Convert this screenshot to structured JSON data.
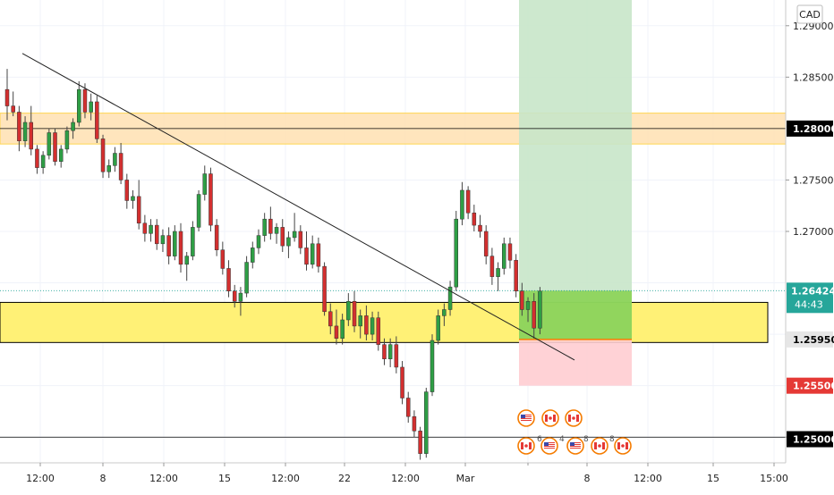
{
  "currency_label": "CAD",
  "chart_data": {
    "type": "candlestick",
    "title": "",
    "xlabel": "",
    "ylabel": "",
    "ylim": [
      1.2475,
      1.2925
    ],
    "y_ticks": [
      "1.29000",
      "1.28500",
      "1.27500",
      "1.27000",
      "1.25000"
    ],
    "x_ticks": [
      "12:00",
      "8",
      "12:00",
      "15",
      "12:00",
      "22",
      "12:00",
      "Mar",
      "12:00",
      "8",
      "12:00",
      "15",
      "15:00"
    ],
    "price_labels": {
      "resistance": "1.28000",
      "current": "1.26424",
      "countdown": "44:43",
      "entry": "1.25950",
      "stop": "1.25500",
      "bottom": "1.25000"
    },
    "colors": {
      "up": "#26a69a",
      "up_body": "#2e9e45",
      "down": "#d32f2f",
      "wick": "#444444",
      "support_zone": "#fff176",
      "resistance_zone": "#ffe0b2",
      "profit_zone": "#c8e6c9",
      "loss_zone": "#ffcdd2"
    },
    "annotations": {
      "resistance_zone": [
        1.2785,
        1.2815
      ],
      "support_zone": [
        1.2592,
        1.2631
      ],
      "resistance_line": 1.28,
      "support_line": 1.25,
      "position": {
        "entry": 1.2595,
        "stop": 1.255,
        "target": 1.2925,
        "current": 1.26424
      },
      "trendline": {
        "from": 1.2873,
        "to": 1.2575
      }
    },
    "event_labels": [
      "6",
      "4",
      "8",
      "8"
    ],
    "candles": [
      [
        1.2838,
        1.2858,
        1.2808,
        1.2822
      ],
      [
        1.2822,
        1.2836,
        1.2812,
        1.2816
      ],
      [
        1.2816,
        1.2822,
        1.2778,
        1.2788
      ],
      [
        1.2788,
        1.2812,
        1.2782,
        1.2806
      ],
      [
        1.2806,
        1.2822,
        1.2774,
        1.278
      ],
      [
        1.278,
        1.2784,
        1.2756,
        1.2762
      ],
      [
        1.2762,
        1.2778,
        1.2756,
        1.2774
      ],
      [
        1.2774,
        1.28,
        1.277,
        1.2796
      ],
      [
        1.2796,
        1.28,
        1.2764,
        1.2768
      ],
      [
        1.2768,
        1.2784,
        1.2762,
        1.278
      ],
      [
        1.278,
        1.2802,
        1.2776,
        1.2798
      ],
      [
        1.2798,
        1.281,
        1.279,
        1.2806
      ],
      [
        1.2806,
        1.2846,
        1.2802,
        1.2838
      ],
      [
        1.2838,
        1.2844,
        1.281,
        1.2816
      ],
      [
        1.2816,
        1.2834,
        1.2808,
        1.2826
      ],
      [
        1.2826,
        1.2832,
        1.2786,
        1.279
      ],
      [
        1.279,
        1.2794,
        1.2752,
        1.2758
      ],
      [
        1.2758,
        1.277,
        1.2752,
        1.2764
      ],
      [
        1.2764,
        1.2782,
        1.2758,
        1.2776
      ],
      [
        1.2776,
        1.2786,
        1.2746,
        1.275
      ],
      [
        1.275,
        1.2756,
        1.2722,
        1.273
      ],
      [
        1.273,
        1.274,
        1.2722,
        1.2734
      ],
      [
        1.2734,
        1.275,
        1.2702,
        1.2708
      ],
      [
        1.2708,
        1.2716,
        1.269,
        1.2698
      ],
      [
        1.2698,
        1.2712,
        1.269,
        1.2706
      ],
      [
        1.2706,
        1.2712,
        1.2682,
        1.2688
      ],
      [
        1.2688,
        1.2702,
        1.268,
        1.2696
      ],
      [
        1.2696,
        1.2704,
        1.2668,
        1.2676
      ],
      [
        1.2676,
        1.2706,
        1.2672,
        1.27
      ],
      [
        1.27,
        1.2708,
        1.266,
        1.2668
      ],
      [
        1.2668,
        1.268,
        1.2652,
        1.2676
      ],
      [
        1.2676,
        1.271,
        1.2672,
        1.2704
      ],
      [
        1.2704,
        1.274,
        1.27,
        1.2736
      ],
      [
        1.2736,
        1.2764,
        1.273,
        1.2756
      ],
      [
        1.2756,
        1.2762,
        1.27,
        1.2706
      ],
      [
        1.2706,
        1.2712,
        1.2676,
        1.2682
      ],
      [
        1.2682,
        1.269,
        1.2658,
        1.2664
      ],
      [
        1.2664,
        1.2672,
        1.2636,
        1.2642
      ],
      [
        1.2642,
        1.2648,
        1.2626,
        1.2632
      ],
      [
        1.2632,
        1.2646,
        1.2618,
        1.264
      ],
      [
        1.264,
        1.2676,
        1.2636,
        1.267
      ],
      [
        1.267,
        1.269,
        1.2664,
        1.2684
      ],
      [
        1.2684,
        1.2702,
        1.2678,
        1.2696
      ],
      [
        1.2696,
        1.2718,
        1.269,
        1.2712
      ],
      [
        1.2712,
        1.2724,
        1.2692,
        1.2698
      ],
      [
        1.2698,
        1.2708,
        1.2688,
        1.2704
      ],
      [
        1.2704,
        1.2712,
        1.268,
        1.2686
      ],
      [
        1.2686,
        1.27,
        1.2674,
        1.2694
      ],
      [
        1.2694,
        1.2718,
        1.269,
        1.27
      ],
      [
        1.27,
        1.2706,
        1.2678,
        1.2684
      ],
      [
        1.2684,
        1.27,
        1.2662,
        1.2668
      ],
      [
        1.2668,
        1.2696,
        1.2664,
        1.2688
      ],
      [
        1.2688,
        1.2694,
        1.266,
        1.2666
      ],
      [
        1.2666,
        1.267,
        1.2618,
        1.2622
      ],
      [
        1.2622,
        1.263,
        1.26,
        1.2608
      ],
      [
        1.2608,
        1.2624,
        1.259,
        1.2596
      ],
      [
        1.2596,
        1.262,
        1.259,
        1.2614
      ],
      [
        1.2614,
        1.264,
        1.2608,
        1.2632
      ],
      [
        1.2632,
        1.2642,
        1.2602,
        1.2608
      ],
      [
        1.2608,
        1.2624,
        1.2596,
        1.2618
      ],
      [
        1.2618,
        1.2628,
        1.2594,
        1.26
      ],
      [
        1.26,
        1.2622,
        1.2594,
        1.2616
      ],
      [
        1.2616,
        1.2622,
        1.2584,
        1.259
      ],
      [
        1.259,
        1.2596,
        1.257,
        1.2576
      ],
      [
        1.2576,
        1.2596,
        1.2568,
        1.259
      ],
      [
        1.259,
        1.2598,
        1.2562,
        1.2568
      ],
      [
        1.2568,
        1.2574,
        1.2532,
        1.2538
      ],
      [
        1.2538,
        1.2544,
        1.2514,
        1.252
      ],
      [
        1.252,
        1.2526,
        1.25,
        1.2506
      ],
      [
        1.2506,
        1.251,
        1.2478,
        1.2484
      ],
      [
        1.2484,
        1.2548,
        1.248,
        1.2544
      ],
      [
        1.2544,
        1.26,
        1.254,
        1.2594
      ],
      [
        1.2594,
        1.2624,
        1.259,
        1.2618
      ],
      [
        1.2618,
        1.263,
        1.2608,
        1.2624
      ],
      [
        1.2624,
        1.2652,
        1.2618,
        1.2646
      ],
      [
        1.2646,
        1.272,
        1.2642,
        1.2712
      ],
      [
        1.2712,
        1.2748,
        1.2706,
        1.274
      ],
      [
        1.274,
        1.2744,
        1.2712,
        1.2718
      ],
      [
        1.2718,
        1.2726,
        1.27,
        1.2706
      ],
      [
        1.2706,
        1.2716,
        1.2694,
        1.27
      ],
      [
        1.27,
        1.2706,
        1.2668,
        1.2676
      ],
      [
        1.2676,
        1.2684,
        1.2648,
        1.2656
      ],
      [
        1.2656,
        1.267,
        1.2642,
        1.2664
      ],
      [
        1.2664,
        1.2694,
        1.2658,
        1.2688
      ],
      [
        1.2688,
        1.2694,
        1.2664,
        1.2672
      ],
      [
        1.2672,
        1.2678,
        1.2636,
        1.2642
      ],
      [
        1.2642,
        1.265,
        1.2618,
        1.2624
      ],
      [
        1.2624,
        1.2636,
        1.2612,
        1.2632
      ],
      [
        1.2632,
        1.264,
        1.2596,
        1.2606
      ],
      [
        1.2606,
        1.2646,
        1.26,
        1.2642
      ]
    ]
  }
}
